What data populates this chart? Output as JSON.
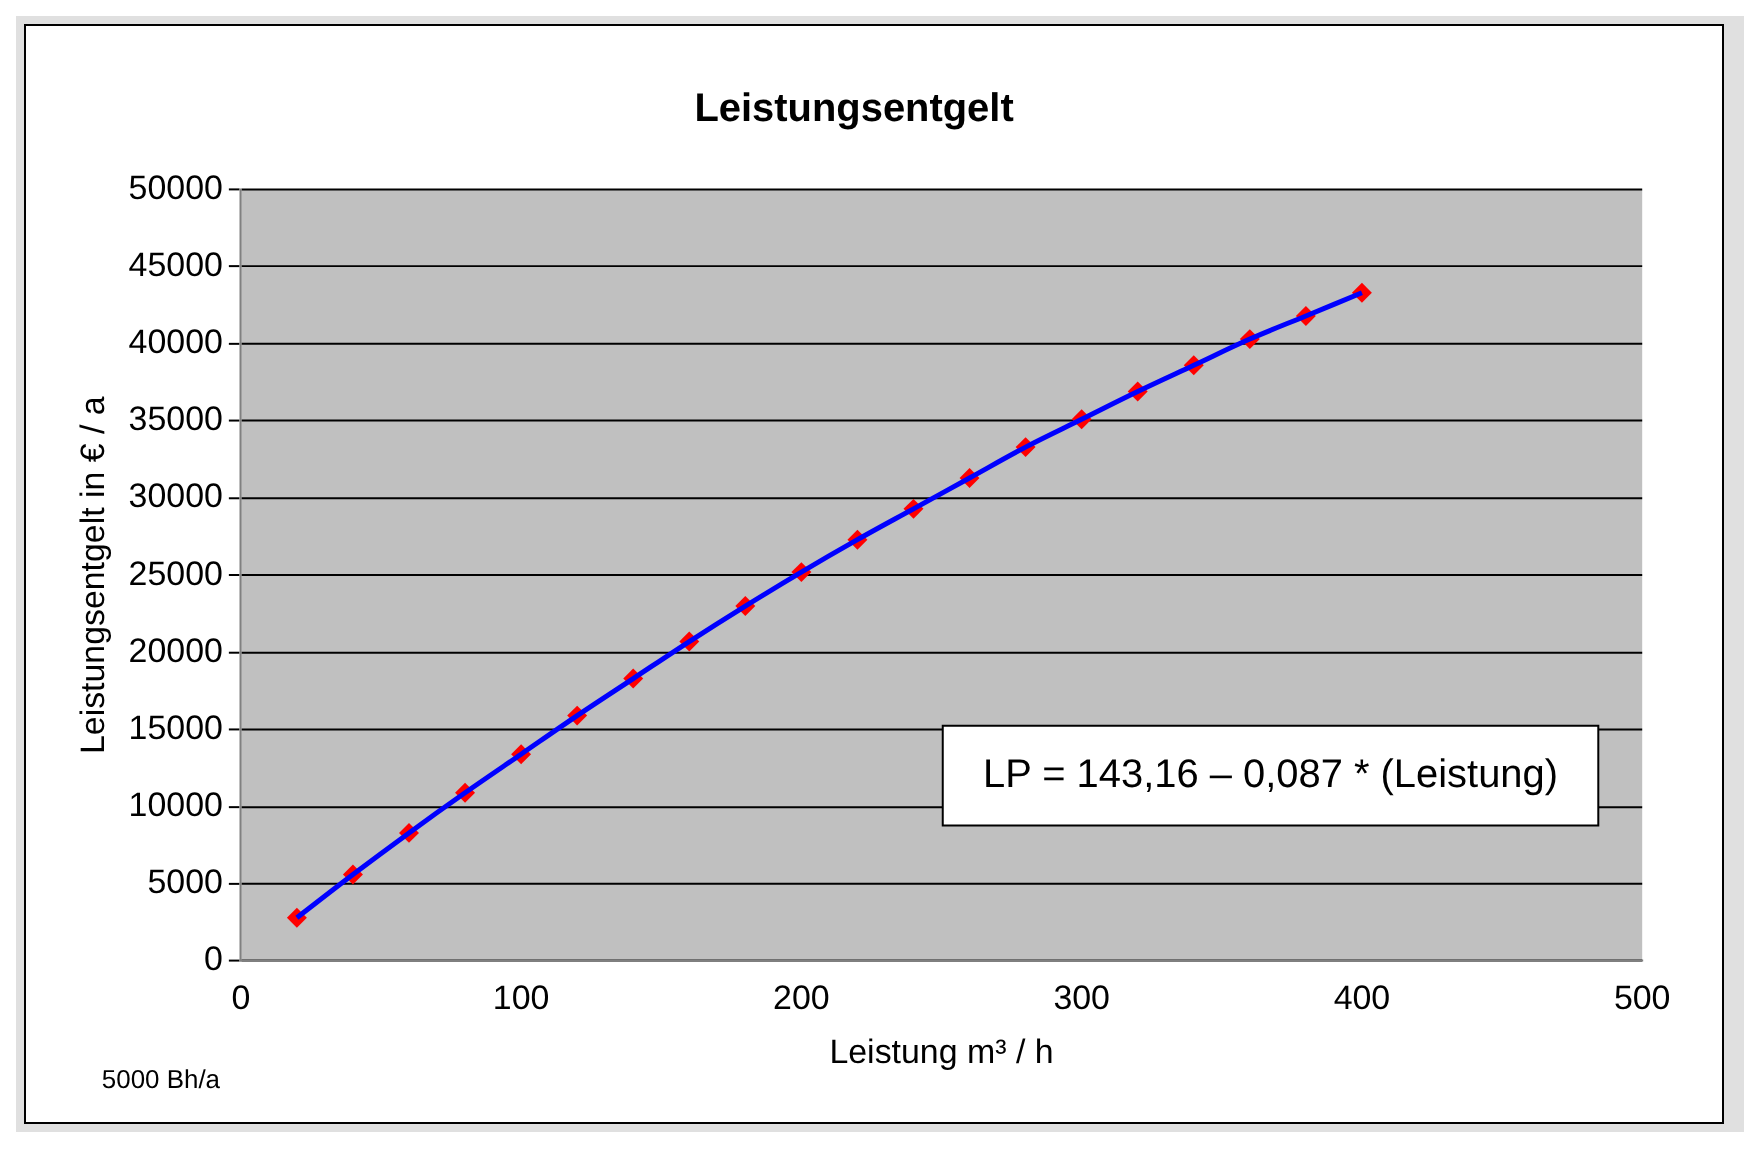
{
  "chart_data": {
    "type": "line",
    "title": "Leistungsentgelt",
    "xlabel": "Leistung m³ / h",
    "ylabel": "Leistungsentgelt in € / a",
    "x": [
      20,
      40,
      60,
      80,
      100,
      120,
      140,
      160,
      180,
      200,
      220,
      240,
      260,
      280,
      300,
      320,
      340,
      360,
      380,
      400
    ],
    "series": [
      {
        "color": "#0000ff",
        "marker": "none",
        "values": [
          2800,
          5600,
          8300,
          10900,
          13400,
          15900,
          18300,
          20700,
          23000,
          25200,
          27300,
          29300,
          31300,
          33300,
          35100,
          36900,
          38600,
          40300,
          41800,
          43300
        ]
      },
      {
        "type": "scatter",
        "color": "#ff0000",
        "marker": "diamond",
        "values": [
          2800,
          5600,
          8300,
          10900,
          13400,
          15900,
          18300,
          20700,
          23000,
          25200,
          27300,
          29300,
          31300,
          33300,
          35100,
          36900,
          38600,
          40300,
          41800,
          43300
        ]
      }
    ],
    "xlim": [
      0,
      500
    ],
    "xticks": [
      0,
      100,
      200,
      300,
      400,
      500
    ],
    "ylim": [
      0,
      50000
    ],
    "yticks": [
      0,
      5000,
      10000,
      15000,
      20000,
      25000,
      30000,
      35000,
      40000,
      45000,
      50000
    ],
    "grid": "y",
    "legend": false,
    "annotations": [
      "LP = 143,16 – 0,087 * (Leistung)",
      "5000 Bh/a"
    ]
  }
}
